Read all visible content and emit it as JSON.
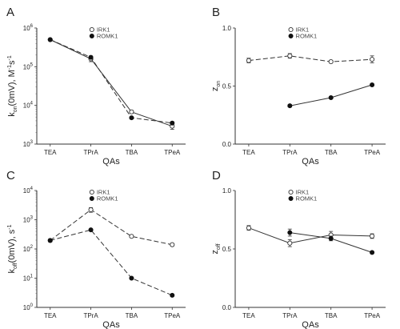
{
  "chart_data": [
    {
      "panel": "A",
      "type": "line",
      "categories": [
        "TEA",
        "TPrA",
        "TBA",
        "TPeA"
      ],
      "xlabel": "QAs",
      "ylabel": "k",
      "ylabel_sub": "on",
      "ylabel_rest": "(0mV), M",
      "ylabel_sup1": "-1",
      "ylabel_mid": "s",
      "ylabel_sup2": "-1",
      "yscale": "log",
      "ylim": [
        1000,
        1000000
      ],
      "yticks": [
        {
          "base": "10",
          "exp": "3",
          "value": 1000
        },
        {
          "base": "10",
          "exp": "4",
          "value": 10000
        },
        {
          "base": "10",
          "exp": "5",
          "value": 100000
        },
        {
          "base": "10",
          "exp": "6",
          "value": 1000000
        }
      ],
      "legend_position": "top-center",
      "series": [
        {
          "name": "IRK1",
          "marker": "open-circle",
          "dash": "",
          "values": [
            500000,
            160000,
            6800,
            2900
          ],
          "errors": [
            20000,
            25000,
            600,
            500
          ]
        },
        {
          "name": "ROMK1",
          "marker": "filled-circle",
          "dash": "6,3",
          "values": [
            500000,
            175000,
            4800,
            3500
          ],
          "errors": [
            20000,
            15000,
            300,
            300
          ]
        }
      ]
    },
    {
      "panel": "B",
      "type": "line",
      "categories": [
        "TEA",
        "TPrA",
        "TBA",
        "TPeA"
      ],
      "xlabel": "QAs",
      "ylabel": "z",
      "ylabel_sub": "on",
      "yscale": "linear",
      "ylim": [
        0.0,
        1.0
      ],
      "yticks": [
        {
          "label": "0.0",
          "value": 0.0
        },
        {
          "label": "0.5",
          "value": 0.5
        },
        {
          "label": "1.0",
          "value": 1.0
        }
      ],
      "legend_position": "top-center",
      "series": [
        {
          "name": "IRK1",
          "marker": "open-circle",
          "dash": "6,3",
          "values": [
            0.72,
            0.76,
            0.71,
            0.73
          ],
          "errors": [
            0.02,
            0.02,
            0.01,
            0.03
          ]
        },
        {
          "name": "ROMK1",
          "marker": "filled-circle",
          "dash": "",
          "values": [
            null,
            0.33,
            0.4,
            0.51
          ],
          "errors": [
            null,
            0.01,
            0.01,
            0.01
          ]
        }
      ]
    },
    {
      "panel": "C",
      "type": "line",
      "categories": [
        "TEA",
        "TPrA",
        "TBA",
        "TPeA"
      ],
      "xlabel": "QAs",
      "ylabel": "k",
      "ylabel_sub": "off",
      "ylabel_rest": "(0mV), s",
      "ylabel_sup1": "-1",
      "yscale": "log",
      "ylim": [
        1,
        10000
      ],
      "yticks": [
        {
          "base": "10",
          "exp": "0",
          "value": 1
        },
        {
          "base": "10",
          "exp": "1",
          "value": 10
        },
        {
          "base": "10",
          "exp": "2",
          "value": 100
        },
        {
          "base": "10",
          "exp": "3",
          "value": 1000
        },
        {
          "base": "10",
          "exp": "4",
          "value": 10000
        }
      ],
      "legend_position": "top-center",
      "series": [
        {
          "name": "IRK1",
          "marker": "open-circle",
          "dash": "6,3",
          "values": [
            195,
            2200,
            270,
            140
          ],
          "errors": [
            20,
            400,
            20,
            10
          ]
        },
        {
          "name": "ROMK1",
          "marker": "filled-circle",
          "dash": "6,3",
          "values": [
            195,
            450,
            10,
            2.6
          ],
          "errors": [
            20,
            30,
            0.7,
            0.2
          ]
        }
      ]
    },
    {
      "panel": "D",
      "type": "line",
      "categories": [
        "TEA",
        "TPrA",
        "TBA",
        "TPeA"
      ],
      "xlabel": "QAs",
      "ylabel": "z",
      "ylabel_sub": "off",
      "yscale": "linear",
      "ylim": [
        0.0,
        1.0
      ],
      "yticks": [
        {
          "label": "0.0",
          "value": 0.0
        },
        {
          "label": "0.5",
          "value": 0.5
        },
        {
          "label": "1.0",
          "value": 1.0
        }
      ],
      "legend_position": "top-center",
      "series": [
        {
          "name": "IRK1",
          "marker": "open-circle",
          "dash": "",
          "values": [
            0.68,
            0.55,
            0.62,
            0.61
          ],
          "errors": [
            0.02,
            0.03,
            0.03,
            0.02
          ]
        },
        {
          "name": "ROMK1",
          "marker": "filled-circle",
          "dash": "",
          "values": [
            null,
            0.64,
            0.59,
            0.47
          ],
          "errors": [
            null,
            0.03,
            0.02,
            0.01
          ]
        }
      ]
    }
  ]
}
